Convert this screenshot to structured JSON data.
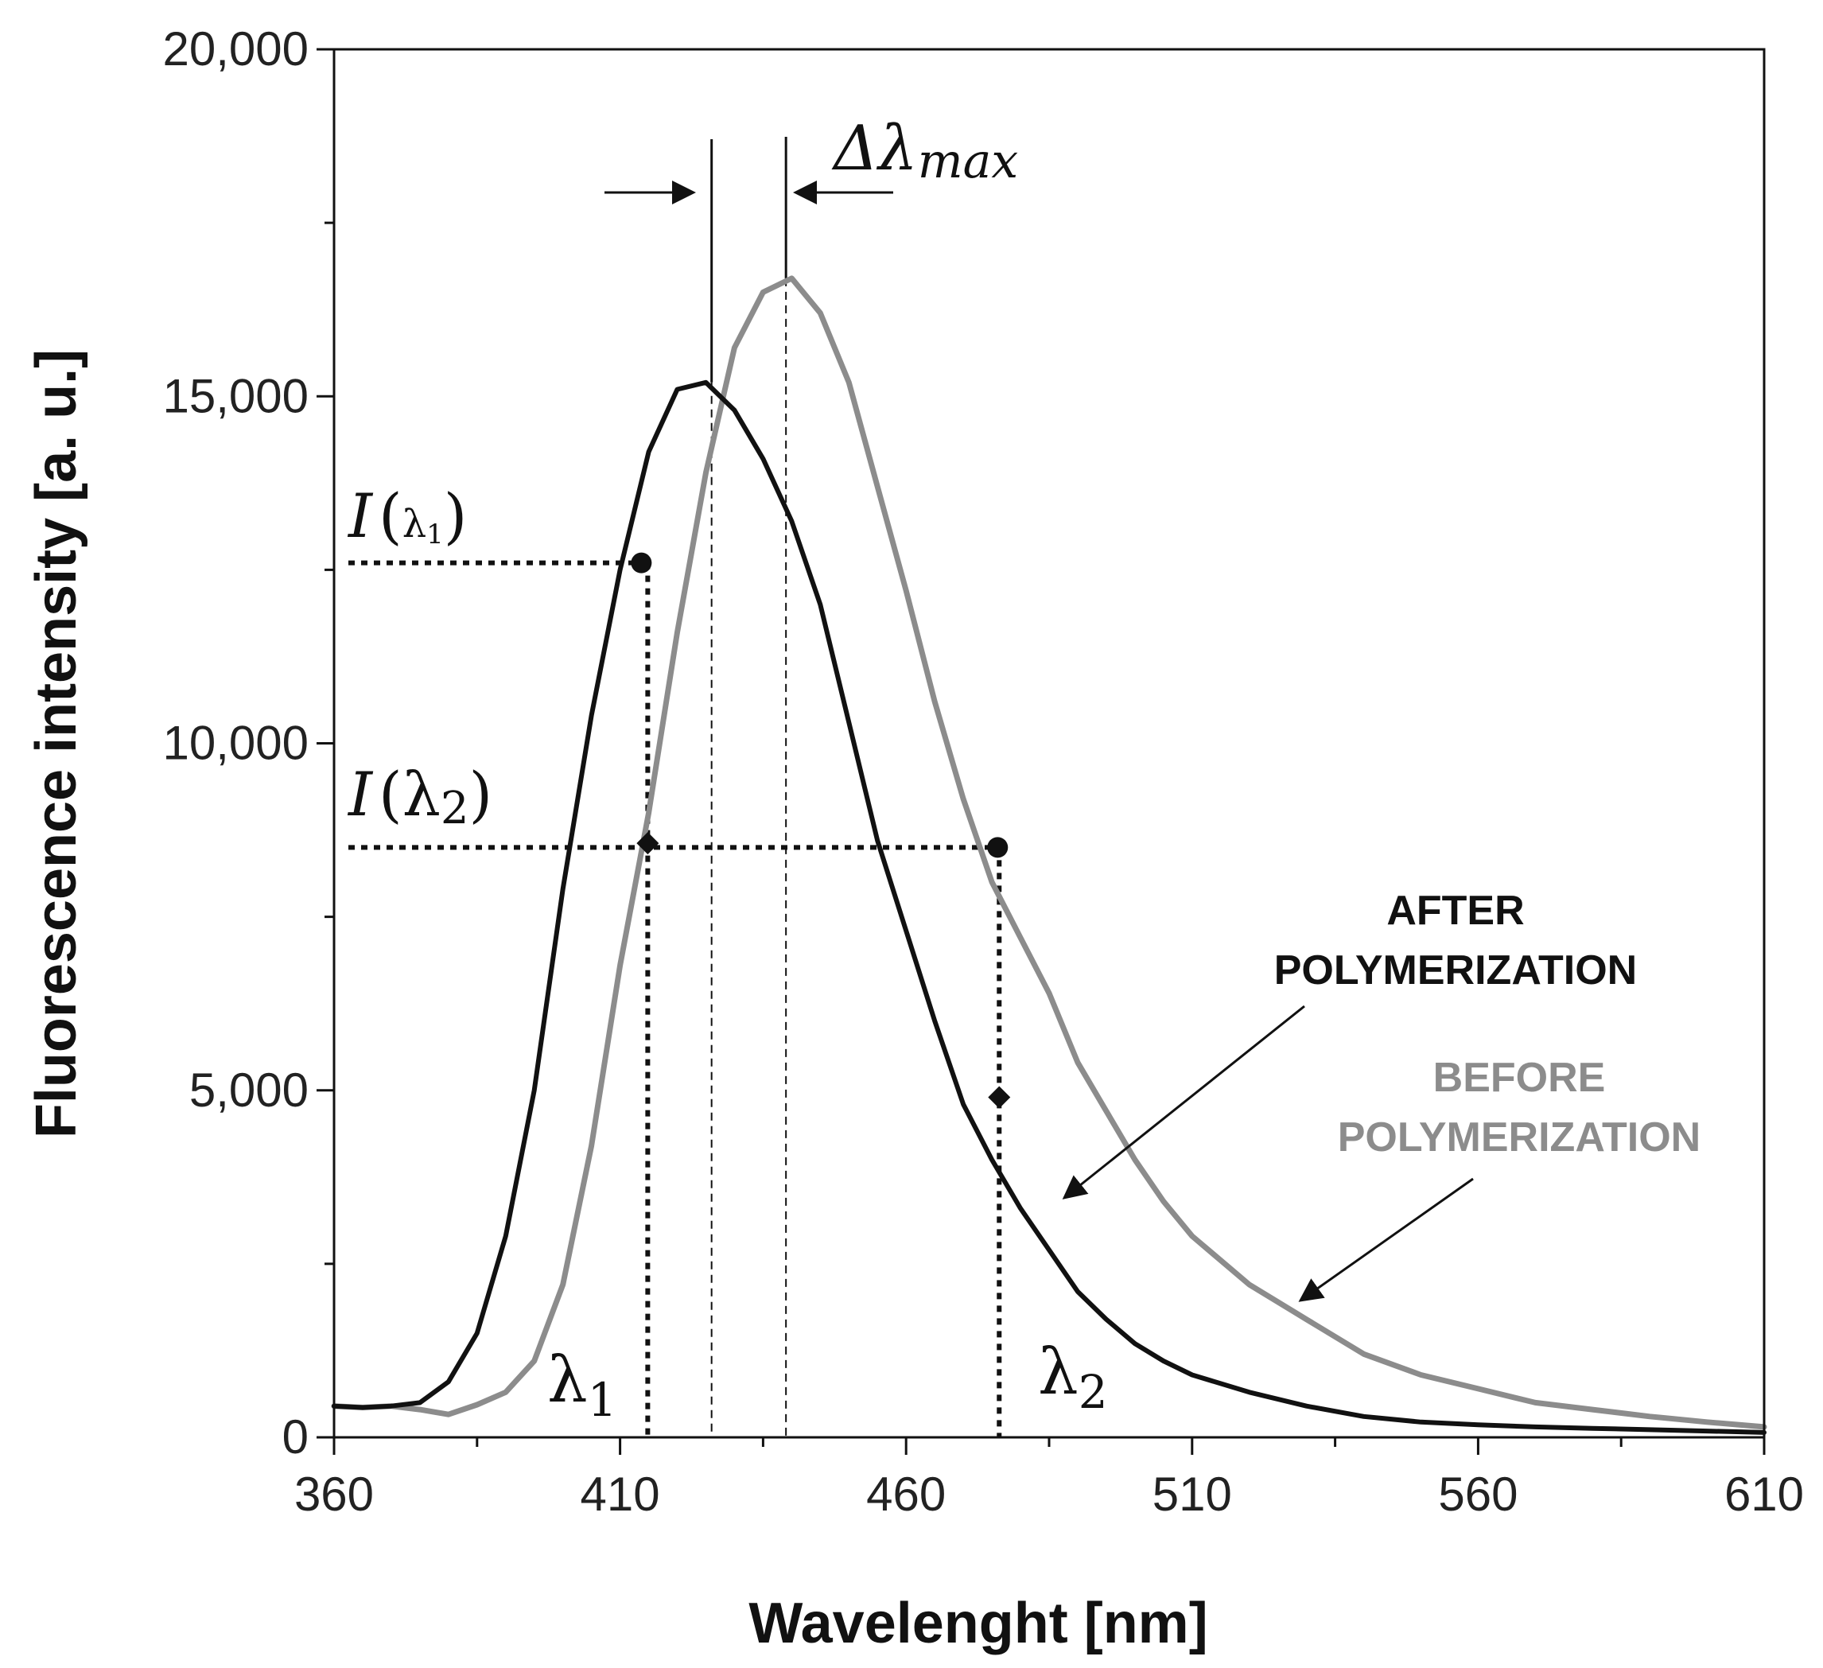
{
  "chart_data": {
    "type": "line",
    "title": "",
    "xlabel": "Wavelenght [nm]",
    "ylabel": "Fluorescence intensity [a. u.]",
    "xlim": [
      360,
      610
    ],
    "ylim": [
      0,
      20000
    ],
    "xticks": [
      360,
      410,
      460,
      510,
      560,
      610
    ],
    "xtick_labels": [
      "360",
      "410",
      "460",
      "510",
      "560",
      "610"
    ],
    "yticks": [
      0,
      5000,
      10000,
      15000,
      20000
    ],
    "ytick_labels": [
      "0",
      "5,000",
      "10,000",
      "15,000",
      "20,000"
    ],
    "series": [
      {
        "name": "BEFORE POLYMERIZATION",
        "color": "#8c8c8c",
        "x": [
          360,
          365,
          370,
          375,
          380,
          385,
          390,
          395,
          400,
          405,
          410,
          415,
          420,
          425,
          430,
          435,
          440,
          445,
          450,
          455,
          460,
          465,
          470,
          475,
          480,
          485,
          490,
          495,
          500,
          505,
          510,
          520,
          530,
          540,
          550,
          560,
          570,
          580,
          590,
          600,
          610
        ],
        "y": [
          450,
          430,
          450,
          400,
          330,
          470,
          650,
          1100,
          2200,
          4200,
          6800,
          9000,
          11600,
          13900,
          15700,
          16500,
          16700,
          16200,
          15200,
          13700,
          12200,
          10600,
          9200,
          8000,
          7200,
          6400,
          5400,
          4700,
          4000,
          3400,
          2900,
          2200,
          1700,
          1200,
          900,
          700,
          500,
          400,
          300,
          220,
          150
        ]
      },
      {
        "name": "AFTER POLYMERIZATION",
        "color": "#111111",
        "x": [
          360,
          365,
          370,
          375,
          380,
          385,
          390,
          395,
          400,
          405,
          410,
          415,
          420,
          425,
          430,
          435,
          440,
          445,
          450,
          455,
          460,
          465,
          470,
          475,
          480,
          485,
          490,
          495,
          500,
          505,
          510,
          520,
          530,
          540,
          550,
          560,
          570,
          580,
          590,
          600,
          610
        ],
        "y": [
          450,
          430,
          450,
          500,
          800,
          1500,
          2900,
          5000,
          7900,
          10400,
          12500,
          14200,
          15100,
          15200,
          14800,
          14100,
          13200,
          12000,
          10300,
          8600,
          7300,
          6000,
          4800,
          4000,
          3300,
          2700,
          2100,
          1700,
          1350,
          1100,
          900,
          650,
          450,
          300,
          220,
          180,
          150,
          130,
          110,
          90,
          70
        ]
      }
    ],
    "annotations": {
      "delta_lambda_max": "Δλ",
      "delta_lambda_max_sub": "max",
      "i_lambda1": "I",
      "lambda1_symbol": "λ",
      "lambda1_sub": "1",
      "i_lambda2": "I",
      "lambda2_symbol": "λ",
      "lambda2_sub": "2",
      "lambda1_x": 414,
      "lambda2_x": 476,
      "peak_after_x": 426,
      "peak_before_x": 439,
      "i_lambda1_value": 12600,
      "i_lambda2_value": 8500,
      "after_at_lambda2": 4900
    },
    "legend": {
      "before_line1": "BEFORE",
      "before_line2": "POLYMERIZATION",
      "after_line1": "AFTER",
      "after_line2": "POLYMERIZATION"
    }
  }
}
